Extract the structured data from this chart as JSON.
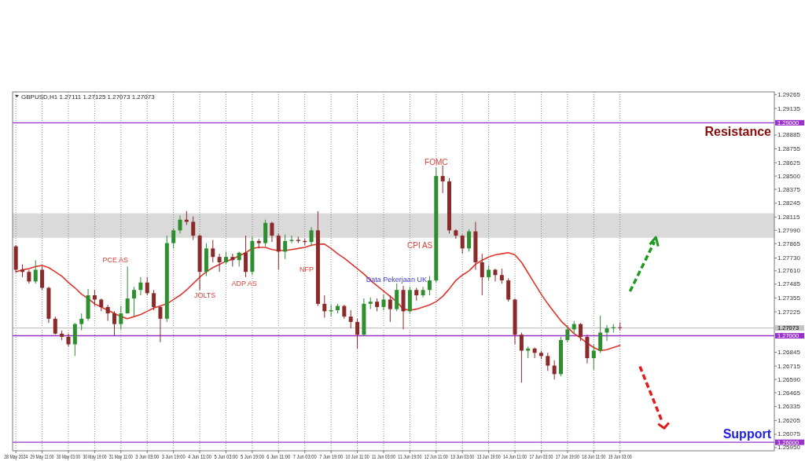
{
  "chart_data": {
    "type": "candlestick",
    "title": "GBPUSD,H1 1.27111 1.27125 1.27073 1.27073",
    "categories": [
      "28 May 2024",
      null,
      null,
      null,
      "29 May 11:00",
      null,
      null,
      null,
      "30 May 03:00",
      null,
      null,
      null,
      "30 May 19:00",
      null,
      null,
      null,
      "31 May 11:00",
      null,
      null,
      null,
      "3 Jun 03:00",
      null,
      null,
      null,
      "3 Jun 19:00",
      null,
      null,
      null,
      "4 Jun 11:00",
      null,
      null,
      null,
      "5 Jun 03:00",
      null,
      null,
      null,
      "5 Jun 19:00",
      null,
      null,
      null,
      "6 Jun 11:00",
      null,
      null,
      null,
      "7 Jun 03:00",
      null,
      null,
      null,
      "7 Jun 19:00",
      null,
      null,
      null,
      "10 Jun 11:00",
      null,
      null,
      null,
      "11 Jun 03:00",
      null,
      null,
      null,
      "11 Jun 19:00",
      null,
      null,
      null,
      "12 Jun 11:00",
      null,
      null,
      null,
      "13 Jun 03:00",
      null,
      null,
      null,
      "13 Jun 19:00",
      null,
      null,
      null,
      "14 Jun 11:00",
      null,
      null,
      null,
      "17 Jun 03:00",
      null,
      null,
      null,
      "17 Jun 19:00",
      null,
      null,
      null,
      "18 Jun 11:00",
      null,
      null,
      null,
      "19 Jun 03:00",
      null,
      null,
      null,
      null,
      null,
      null,
      null,
      null,
      null,
      null,
      null,
      null,
      null,
      null,
      null,
      null,
      null,
      null,
      null,
      null,
      null,
      null,
      null
    ],
    "ohlc": [
      [
        1.2784,
        1.2785,
        1.276,
        1.2762
      ],
      [
        1.2762,
        1.2767,
        1.2755,
        1.276
      ],
      [
        1.276,
        1.2762,
        1.2749,
        1.2751
      ],
      [
        1.2751,
        1.2771,
        1.2749,
        1.2762
      ],
      [
        1.2762,
        1.2765,
        1.2743,
        1.2745
      ],
      [
        1.2745,
        1.2746,
        1.2712,
        1.2716
      ],
      [
        1.2716,
        1.2718,
        1.2701,
        1.2702
      ],
      [
        1.2702,
        1.2705,
        1.2696,
        1.2699
      ],
      [
        1.2699,
        1.2702,
        1.269,
        1.2692
      ],
      [
        1.2692,
        1.2712,
        1.2681,
        1.2711
      ],
      [
        1.2711,
        1.2721,
        1.2705,
        1.2716
      ],
      [
        1.2716,
        1.2744,
        1.2714,
        1.2738
      ],
      [
        1.2738,
        1.2743,
        1.2728,
        1.2734
      ],
      [
        1.2734,
        1.2735,
        1.2723,
        1.2727
      ],
      [
        1.2727,
        1.2729,
        1.2714,
        1.2721
      ],
      [
        1.2721,
        1.2723,
        1.27,
        1.2711
      ],
      [
        1.2711,
        1.2728,
        1.2706,
        1.2721
      ],
      [
        1.2721,
        1.2765,
        1.2721,
        1.2735
      ],
      [
        1.2735,
        1.2746,
        1.2718,
        1.2743
      ],
      [
        1.2743,
        1.2755,
        1.2738,
        1.275
      ],
      [
        1.275,
        1.2755,
        1.2738,
        1.274
      ],
      [
        1.274,
        1.2743,
        1.2724,
        1.2727
      ],
      [
        1.2727,
        1.2728,
        1.2694,
        1.2716
      ],
      [
        1.2716,
        1.2794,
        1.2713,
        1.2787
      ],
      [
        1.2787,
        1.2801,
        1.2782,
        1.2799
      ],
      [
        1.2799,
        1.2813,
        1.2796,
        1.2809
      ],
      [
        1.2809,
        1.2817,
        1.2804,
        1.2807
      ],
      [
        1.2807,
        1.2812,
        1.279,
        1.2794
      ],
      [
        1.2794,
        1.2795,
        1.2743,
        1.276
      ],
      [
        1.276,
        1.2787,
        1.2756,
        1.2782
      ],
      [
        1.2782,
        1.279,
        1.2769,
        1.2774
      ],
      [
        1.2774,
        1.2777,
        1.276,
        1.2769
      ],
      [
        1.2769,
        1.2779,
        1.2767,
        1.2774
      ],
      [
        1.2774,
        1.2777,
        1.2765,
        1.2771
      ],
      [
        1.2771,
        1.2779,
        1.2765,
        1.2778
      ],
      [
        1.2778,
        1.2794,
        1.2755,
        1.276
      ],
      [
        1.276,
        1.2793,
        1.2757,
        1.2789
      ],
      [
        1.2789,
        1.2791,
        1.2782,
        1.2787
      ],
      [
        1.2787,
        1.2809,
        1.2784,
        1.2806
      ],
      [
        1.2806,
        1.2807,
        1.2788,
        1.2794
      ],
      [
        1.2794,
        1.2796,
        1.2762,
        1.2779
      ],
      [
        1.2779,
        1.2795,
        1.2772,
        1.2789
      ],
      [
        1.2789,
        1.2794,
        1.2787,
        1.279
      ],
      [
        1.279,
        1.2793,
        1.2787,
        1.2789
      ],
      [
        1.2789,
        1.2791,
        1.2785,
        1.2788
      ],
      [
        1.2788,
        1.2802,
        1.2784,
        1.2799
      ],
      [
        1.2799,
        1.2817,
        1.2728,
        1.273
      ],
      [
        1.273,
        1.2738,
        1.2717,
        1.2723
      ],
      [
        1.2723,
        1.2729,
        1.2718,
        1.2724
      ],
      [
        1.2724,
        1.273,
        1.2721,
        1.2728
      ],
      [
        1.2728,
        1.2729,
        1.2716,
        1.2718
      ],
      [
        1.2718,
        1.2724,
        1.2707,
        1.2713
      ],
      [
        1.2713,
        1.2716,
        1.2688,
        1.2701
      ],
      [
        1.2701,
        1.2735,
        1.27,
        1.273
      ],
      [
        1.273,
        1.2736,
        1.2725,
        1.2732
      ],
      [
        1.2732,
        1.2735,
        1.2723,
        1.2727
      ],
      [
        1.2727,
        1.2739,
        1.2724,
        1.2734
      ],
      [
        1.2734,
        1.2738,
        1.2713,
        1.2725
      ],
      [
        1.2725,
        1.2749,
        1.2723,
        1.2743
      ],
      [
        1.2743,
        1.2747,
        1.2706,
        1.2723
      ],
      [
        1.2723,
        1.2746,
        1.2721,
        1.2743
      ],
      [
        1.2743,
        1.2745,
        1.2733,
        1.2738
      ],
      [
        1.2738,
        1.2746,
        1.2736,
        1.2743
      ],
      [
        1.2743,
        1.2756,
        1.2738,
        1.2752
      ],
      [
        1.2752,
        1.2858,
        1.275,
        1.285
      ],
      [
        1.285,
        1.286,
        1.2834,
        1.2845
      ],
      [
        1.2845,
        1.2848,
        1.2796,
        1.2799
      ],
      [
        1.2799,
        1.28,
        1.2791,
        1.2794
      ],
      [
        1.2794,
        1.2795,
        1.2777,
        1.2782
      ],
      [
        1.2782,
        1.28,
        1.2779,
        1.2798
      ],
      [
        1.2798,
        1.2807,
        1.2762,
        1.2769
      ],
      [
        1.2769,
        1.2777,
        1.2738,
        1.2755
      ],
      [
        1.2755,
        1.2766,
        1.2752,
        1.2762
      ],
      [
        1.2762,
        1.2763,
        1.2751,
        1.2757
      ],
      [
        1.2757,
        1.2763,
        1.2749,
        1.2752
      ],
      [
        1.2752,
        1.2754,
        1.2732,
        1.2734
      ],
      [
        1.2734,
        1.2735,
        1.2692,
        1.2701
      ],
      [
        1.2701,
        1.2703,
        1.2656,
        1.2686
      ],
      [
        1.2686,
        1.269,
        1.2679,
        1.2688
      ],
      [
        1.2688,
        1.2689,
        1.2679,
        1.2684
      ],
      [
        1.2684,
        1.2686,
        1.2678,
        1.2681
      ],
      [
        1.2681,
        1.2684,
        1.2667,
        1.2672
      ],
      [
        1.2672,
        1.2677,
        1.2659,
        1.2664
      ],
      [
        1.2664,
        1.2699,
        1.2662,
        1.2696
      ],
      [
        1.2696,
        1.271,
        1.2694,
        1.2706
      ],
      [
        1.2706,
        1.2714,
        1.2702,
        1.2711
      ],
      [
        1.2711,
        1.2712,
        1.2695,
        1.2699
      ],
      [
        1.2699,
        1.2701,
        1.2674,
        1.2679
      ],
      [
        1.2679,
        1.2692,
        1.2668,
        1.2686
      ],
      [
        1.2686,
        1.2719,
        1.2684,
        1.2703
      ],
      [
        1.2703,
        1.271,
        1.2695,
        1.2707
      ],
      [
        1.2707,
        1.2711,
        1.2703,
        1.2708
      ],
      [
        1.2708,
        1.27125,
        1.2705,
        1.27073
      ],
      null,
      null,
      null,
      null,
      null,
      null,
      null,
      null,
      null,
      null,
      null,
      null,
      null,
      null,
      null,
      null,
      null,
      null,
      null,
      null,
      null,
      null,
      null
    ],
    "colors": [
      "#8b2a2a",
      "#8b2a2a",
      "#8b2a2a",
      "#2f8f2f",
      "#8b2a2a",
      "#8b2a2a",
      "#8b2a2a",
      "#8b2a2a",
      "#8b2a2a",
      "#2f8f2f",
      "#2f8f2f",
      "#2f8f2f",
      "#8b2a2a",
      "#8b2a2a",
      "#8b2a2a",
      "#8b2a2a",
      "#2f8f2f",
      "#2f8f2f",
      "#2f8f2f",
      "#2f8f2f",
      "#8b2a2a",
      "#8b2a2a",
      "#8b2a2a",
      "#2f8f2f",
      "#2f8f2f",
      "#2f8f2f",
      "#8b2a2a",
      "#8b2a2a",
      "#8b2a2a",
      "#2f8f2f",
      "#8b2a2a",
      "#8b2a2a",
      "#2f8f2f",
      "#8b2a2a",
      "#2f8f2f",
      "#8b2a2a",
      "#2f8f2f",
      "#8b2a2a",
      "#2f8f2f",
      "#8b2a2a",
      "#8b2a2a",
      "#2f8f2f",
      "#2f8f2f",
      "#8b2a2a",
      "#8b2a2a",
      "#2f8f2f",
      "#8b2a2a",
      "#8b2a2a",
      "#2f8f2f",
      "#2f8f2f",
      "#8b2a2a",
      "#8b2a2a",
      "#8b2a2a",
      "#2f8f2f",
      "#2f8f2f",
      "#8b2a2a",
      "#2f8f2f",
      "#8b2a2a",
      "#2f8f2f",
      "#8b2a2a",
      "#2f8f2f",
      "#8b2a2a",
      "#2f8f2f",
      "#2f8f2f",
      "#2f8f2f",
      "#8b2a2a",
      "#8b2a2a",
      "#8b2a2a",
      "#8b2a2a",
      "#2f8f2f",
      "#8b2a2a",
      "#8b2a2a",
      "#2f8f2f",
      "#8b2a2a",
      "#8b2a2a",
      "#8b2a2a",
      "#8b2a2a",
      "#8b2a2a",
      "#2f8f2f",
      "#8b2a2a",
      "#8b2a2a",
      "#8b2a2a",
      "#8b2a2a",
      "#2f8f2f",
      "#2f8f2f",
      "#2f8f2f",
      "#8b2a2a",
      "#8b2a2a",
      "#2f8f2f",
      "#2f8f2f",
      "#2f8f2f",
      "#2f8f2f",
      "#8b2a2a",
      null,
      null,
      null,
      null,
      null,
      null,
      null,
      null,
      null,
      null,
      null,
      null,
      null,
      null,
      null,
      null,
      null,
      null,
      null,
      null,
      null,
      null,
      null
    ],
    "series": [
      {
        "type": "line",
        "color": "#e0352e",
        "values": [
          1.276,
          1.2762,
          1.2763,
          1.2765,
          1.2766,
          1.2764,
          1.276,
          1.2756,
          1.275,
          1.2745,
          1.2739,
          1.2735,
          1.273,
          1.2727,
          1.2724,
          1.2721,
          1.2718,
          1.2716,
          1.2718,
          1.272,
          1.2723,
          1.2726,
          1.2728,
          1.273,
          1.2734,
          1.2738,
          1.2743,
          1.2749,
          1.2755,
          1.276,
          1.2764,
          1.2767,
          1.277,
          1.2772,
          1.2775,
          1.2778,
          1.2782,
          1.2783,
          1.2783,
          1.2781,
          1.278,
          1.278,
          1.2781,
          1.2782,
          1.2783,
          1.2785,
          1.2786,
          1.2786,
          1.2782,
          1.2777,
          1.2773,
          1.2768,
          1.2763,
          1.2758,
          1.2752,
          1.2747,
          1.2742,
          1.2737,
          1.2732,
          1.2725,
          1.2724,
          1.2725,
          1.2727,
          1.2729,
          1.2732,
          1.2737,
          1.2744,
          1.2752,
          1.2757,
          1.2761,
          1.2767,
          1.2771,
          1.2774,
          1.2776,
          1.2777,
          1.2778,
          1.2776,
          1.2769,
          1.2759,
          1.2749,
          1.2739,
          1.273,
          1.2722,
          1.2714,
          1.2708,
          1.2702,
          1.2698,
          1.2693,
          1.2689,
          1.2686,
          1.2687,
          1.2689,
          1.2691,
          null,
          null,
          null,
          null,
          null,
          null,
          null,
          null,
          null,
          null,
          null,
          null,
          null,
          null,
          null,
          null,
          null,
          null,
          null,
          null,
          null,
          null,
          null
        ]
      }
    ],
    "ylim": [
      1.2592,
      1.2929
    ],
    "yticks": [
      1.29265,
      1.29135,
      1.28885,
      1.28755,
      1.28625,
      {
        "value": 1.285,
        "label": "1.28500"
      },
      1.28375,
      1.28245,
      1.28115,
      {
        "value": 1.2799,
        "label": "1.27990"
      },
      1.27865,
      {
        "value": 1.2773,
        "label": "1.27730"
      },
      {
        "value": 1.2761,
        "label": "1.27610"
      },
      1.27485,
      1.27355,
      1.27225,
      1.26845,
      1.26715,
      {
        "value": 1.2659,
        "label": "1.26590"
      },
      1.26465,
      1.26335,
      1.26205,
      1.26075,
      {
        "value": 1.2595,
        "label": "1.25950"
      }
    ],
    "grid": "x",
    "ref_lines": [
      {
        "axis": "y",
        "value": 1.29,
        "label": "1.29000",
        "color": "#9932cc",
        "line_style": "solid"
      },
      {
        "axis": "y",
        "value": 1.27073,
        "label": "1.27073",
        "color": "#c4c4c4",
        "line_style": "solid"
      },
      {
        "axis": "y",
        "value": 1.27,
        "label": "1.27000",
        "color": "#9932cc",
        "line_style": "solid"
      },
      {
        "axis": "y",
        "value": 1.26,
        "label": "1.26000",
        "color": "#9932cc",
        "line_style": "solid"
      }
    ],
    "bands": [
      {
        "axis": "y",
        "from": 1.2792,
        "to": 1.2815,
        "color": "#dadada"
      }
    ],
    "annotations": [
      {
        "text": "Resistance",
        "y": 1.29
      },
      {
        "text": "FOMC",
        "x": "12 Jun 11:00",
        "y": 1.2858
      },
      {
        "text": "CPI AS",
        "x": "12 Jun 11:00",
        "y": 1.2785
      },
      "PCE AS",
      "NFP",
      "Data Pekerjaan UK",
      "ADP AS",
      "JOLTS",
      {
        "text": "Support",
        "y": 1.26
      }
    ]
  }
}
